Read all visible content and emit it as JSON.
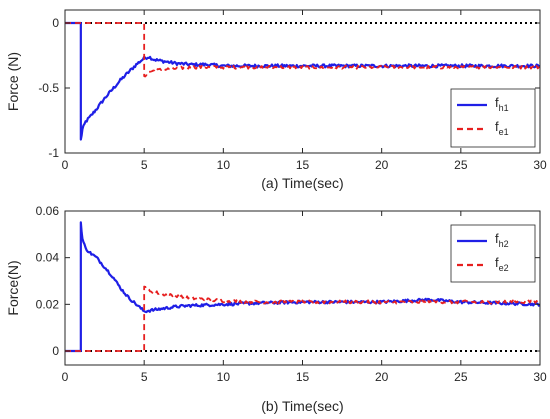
{
  "chart_data": [
    {
      "type": "line",
      "panel": "a",
      "title": "",
      "xlabel": "(a) Time(sec)",
      "ylabel": "Force (N)",
      "xlim": [
        0,
        30
      ],
      "ylim": [
        -1,
        0.1
      ],
      "xticks": [
        0,
        5,
        10,
        15,
        20,
        25,
        30
      ],
      "yticks": [
        0,
        -0.5,
        -1
      ],
      "ytick_labels": [
        "0",
        "-0.5",
        "-1"
      ],
      "grid": false,
      "legend_position": "right",
      "zero_reference_line": {
        "y": 0,
        "style": "dotted",
        "color": "#000000"
      },
      "series": [
        {
          "legend": {
            "main": "f",
            "sub": "h1"
          },
          "color": "#1f1fe6",
          "style": "solid",
          "x": [
            0,
            1.0,
            1.0,
            1.1,
            1.3,
            1.6,
            2.0,
            2.5,
            3.0,
            3.5,
            4.0,
            4.5,
            5.0,
            5.3,
            5.6,
            6.0,
            6.5,
            7.0,
            8.0,
            9.0,
            10.0,
            12.0,
            15.0,
            20.0,
            25.0,
            30.0
          ],
          "y": [
            0,
            0,
            -0.9,
            -0.82,
            -0.76,
            -0.72,
            -0.66,
            -0.58,
            -0.51,
            -0.44,
            -0.38,
            -0.32,
            -0.27,
            -0.26,
            -0.28,
            -0.29,
            -0.3,
            -0.31,
            -0.32,
            -0.32,
            -0.33,
            -0.33,
            -0.33,
            -0.33,
            -0.33,
            -0.33
          ],
          "noise": 0.012
        },
        {
          "legend": {
            "main": "f",
            "sub": "e1"
          },
          "color": "#e61f1f",
          "style": "dashed",
          "x": [
            0,
            5.0,
            5.0,
            5.0,
            5.2,
            5.5,
            6.0,
            7.0,
            8.0,
            10.0,
            12.0,
            15.0,
            20.0,
            25.0,
            30.0
          ],
          "y": [
            0,
            0,
            -0.1,
            -0.42,
            -0.38,
            -0.37,
            -0.36,
            -0.35,
            -0.34,
            -0.34,
            -0.34,
            -0.34,
            -0.34,
            -0.34,
            -0.34
          ],
          "noise": 0.012
        }
      ]
    },
    {
      "type": "line",
      "panel": "b",
      "title": "",
      "xlabel": "(b) Time(sec)",
      "ylabel": "Force(N)",
      "xlim": [
        0,
        30
      ],
      "ylim": [
        -0.006,
        0.06
      ],
      "xticks": [
        0,
        5,
        10,
        15,
        20,
        25,
        30
      ],
      "yticks": [
        0,
        0.02,
        0.04,
        0.06
      ],
      "ytick_labels": [
        "0",
        "0.02",
        "0.04",
        "0.06"
      ],
      "grid": false,
      "legend_position": "top-right",
      "zero_reference_line": {
        "y": 0,
        "style": "dotted",
        "color": "#000000"
      },
      "series": [
        {
          "legend": {
            "main": "f",
            "sub": "h2"
          },
          "color": "#1f1fe6",
          "style": "solid",
          "x": [
            0,
            1.0,
            1.0,
            1.1,
            1.3,
            1.6,
            2.0,
            2.5,
            3.0,
            3.5,
            4.0,
            4.5,
            5.0,
            5.5,
            6.0,
            7.0,
            8.0,
            10.0,
            12.0,
            15.0,
            20.0,
            23.0,
            25.0,
            30.0
          ],
          "y": [
            0,
            0,
            0.055,
            0.048,
            0.044,
            0.042,
            0.04,
            0.036,
            0.032,
            0.027,
            0.023,
            0.02,
            0.017,
            0.0175,
            0.018,
            0.019,
            0.0195,
            0.02,
            0.0205,
            0.021,
            0.021,
            0.022,
            0.021,
            0.02
          ],
          "noise": 0.0006
        },
        {
          "legend": {
            "main": "f",
            "sub": "e2"
          },
          "color": "#e61f1f",
          "style": "dashed",
          "x": [
            0,
            5.0,
            5.0,
            5.0,
            5.3,
            5.8,
            6.5,
            7.5,
            9.0,
            10.0,
            12.0,
            15.0,
            20.0,
            25.0,
            30.0
          ],
          "y": [
            0,
            0,
            0.005,
            0.028,
            0.026,
            0.025,
            0.024,
            0.023,
            0.022,
            0.0215,
            0.021,
            0.021,
            0.021,
            0.021,
            0.021
          ],
          "noise": 0.0007
        }
      ]
    }
  ]
}
